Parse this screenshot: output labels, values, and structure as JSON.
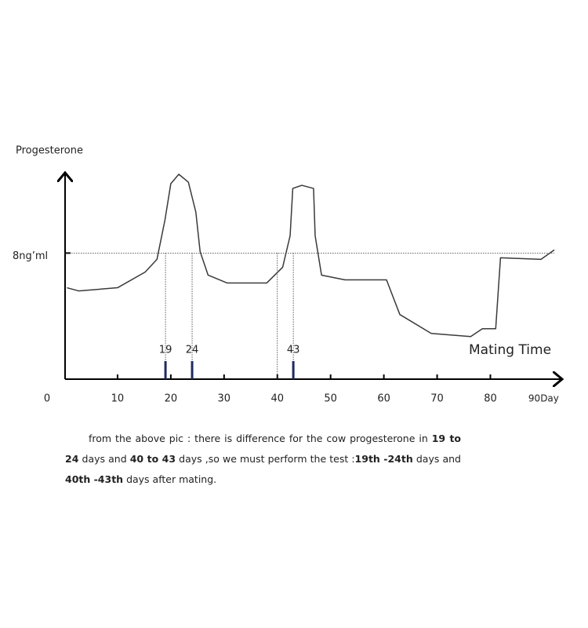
{
  "chart_data": {
    "type": "line",
    "y_label": "Progesterone",
    "x_annotation": "Mating Time",
    "x": [
      0.5,
      2.7,
      10,
      15.2,
      17.4,
      18.9,
      20,
      21.5,
      23.3,
      24.7,
      25.5,
      27,
      30.6,
      38,
      41,
      42.4,
      42.9,
      44.6,
      46.8,
      47.1,
      48.3,
      52.7,
      60.5,
      63,
      68.9,
      76.3,
      78.5,
      81,
      81.9,
      89.5,
      92
    ],
    "series": [
      {
        "name": "Progesterone",
        "color": "#3a3a3a",
        "values": [
          5.8,
          5.6,
          5.8,
          6.8,
          7.6,
          10.1,
          12.4,
          13,
          12.5,
          10.6,
          8.1,
          6.6,
          6.1,
          6.1,
          7.1,
          9.1,
          12.1,
          12.3,
          12.1,
          9.1,
          6.6,
          6.3,
          6.3,
          4.1,
          2.9,
          2.7,
          3.2,
          3.2,
          7.7,
          7.6,
          8.2
        ]
      }
    ],
    "xlim": [
      0,
      92
    ],
    "xticks": [
      0,
      10,
      20,
      30,
      40,
      50,
      60,
      70,
      80,
      {
        "value": 90,
        "label": "90Day"
      }
    ],
    "ylim": [
      0,
      13
    ],
    "yticks": [
      {
        "value": 8,
        "label": "8ng’ml"
      }
    ],
    "grid": true,
    "mating_days": [
      19,
      24,
      43
    ],
    "dashed_days": [
      19,
      24,
      40,
      43
    ],
    "caption": [
      {
        "text": "from the above pic : there is difference for the cow progesterone in ",
        "bold": false
      },
      {
        "text": "19 to 24",
        "bold": true
      },
      {
        "text": " days and ",
        "bold": false
      },
      {
        "text": "40 to 43",
        "bold": true
      },
      {
        "text": " days ,so we must perform the test :",
        "bold": false
      },
      {
        "text": "19th -24th",
        "bold": true
      },
      {
        "text": " days and ",
        "bold": false
      },
      {
        "text": "40th -43th",
        "bold": true
      },
      {
        "text": " days after mating.",
        "bold": false
      }
    ]
  }
}
